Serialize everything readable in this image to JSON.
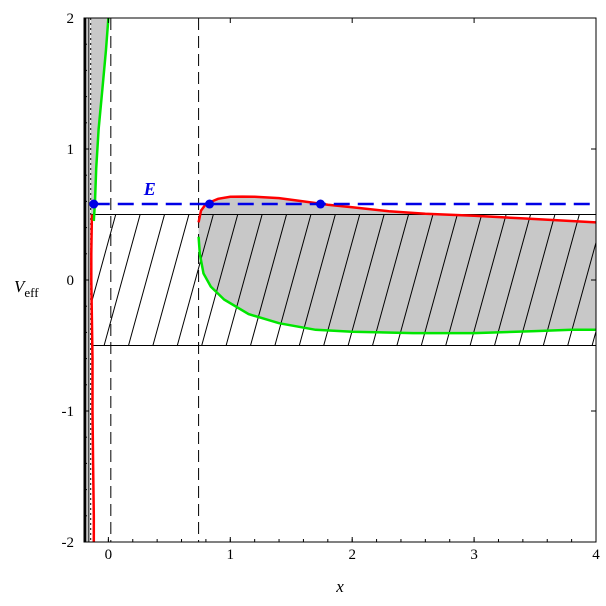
{
  "chart_data": {
    "type": "line",
    "xlabel": "x",
    "ylabel": {
      "main": "V",
      "sub": "eff"
    },
    "xlim": [
      -0.2,
      4
    ],
    "ylim": [
      -2,
      2
    ],
    "x_ticks": [
      {
        "value": 0,
        "label": "0"
      },
      {
        "value": 1,
        "label": "1"
      },
      {
        "value": 2,
        "label": "2"
      },
      {
        "value": 3,
        "label": "3"
      },
      {
        "value": 4,
        "label": "4"
      }
    ],
    "y_ticks": [
      {
        "value": -2,
        "label": "-2"
      },
      {
        "value": -1,
        "label": "-1"
      },
      {
        "value": 0,
        "label": "0"
      },
      {
        "value": 1,
        "label": "1"
      },
      {
        "value": 2,
        "label": "2"
      }
    ],
    "colors": {
      "red_curve": "#ff0000",
      "green_curve": "#00e600",
      "energy": "#0000e6",
      "shade": "#c8c8c8",
      "frame": "#000000"
    },
    "energy_line": {
      "label": "E",
      "y": 0.58,
      "points": [
        {
          "x": -0.12,
          "y": 0.58
        },
        {
          "x": 0.83,
          "y": 0.58
        },
        {
          "x": 1.74,
          "y": 0.58
        }
      ]
    },
    "band": {
      "x": [
        -0.14,
        4.0
      ],
      "y": [
        -0.5,
        0.5
      ]
    },
    "vertical_dashed_lines": [
      0.02,
      0.74
    ],
    "vertical_dotted_line": -0.145,
    "shaded_strip_left": [
      -0.19,
      -0.16
    ],
    "series": [
      {
        "color": "red",
        "values": [
          [
            0.74,
            0.44
          ],
          [
            0.76,
            0.53
          ],
          [
            0.8,
            0.58
          ],
          [
            0.85,
            0.6
          ],
          [
            0.9,
            0.62
          ],
          [
            1.0,
            0.635
          ],
          [
            1.1,
            0.637
          ],
          [
            1.2,
            0.635
          ],
          [
            1.4,
            0.625
          ],
          [
            1.6,
            0.6
          ],
          [
            1.8,
            0.575
          ],
          [
            2.0,
            0.555
          ],
          [
            2.3,
            0.525
          ],
          [
            2.6,
            0.505
          ],
          [
            3.0,
            0.49
          ],
          [
            3.4,
            0.47
          ],
          [
            3.7,
            0.455
          ],
          [
            4.0,
            0.44
          ]
        ]
      },
      {
        "color": "red",
        "values": [
          [
            -0.135,
            0.5
          ],
          [
            -0.14,
            0.2
          ],
          [
            -0.14,
            0.0
          ],
          [
            -0.135,
            -0.3
          ],
          [
            -0.13,
            -0.6
          ],
          [
            -0.13,
            -1.0
          ],
          [
            -0.125,
            -1.4
          ],
          [
            -0.12,
            -1.8
          ],
          [
            -0.12,
            -2.0
          ]
        ]
      },
      {
        "color": "green",
        "values": [
          [
            0.74,
            0.33
          ],
          [
            0.75,
            0.2
          ],
          [
            0.78,
            0.05
          ],
          [
            0.84,
            -0.05
          ],
          [
            0.95,
            -0.15
          ],
          [
            1.15,
            -0.26
          ],
          [
            1.4,
            -0.33
          ],
          [
            1.7,
            -0.38
          ],
          [
            2.0,
            -0.395
          ],
          [
            2.5,
            -0.405
          ],
          [
            3.0,
            -0.405
          ],
          [
            3.5,
            -0.39
          ],
          [
            3.8,
            -0.38
          ],
          [
            4.0,
            -0.38
          ]
        ]
      },
      {
        "color": "green",
        "values": [
          [
            0.0,
            2.0
          ],
          [
            -0.02,
            1.75
          ],
          [
            -0.05,
            1.45
          ],
          [
            -0.08,
            1.15
          ],
          [
            -0.1,
            0.85
          ],
          [
            -0.11,
            0.6
          ],
          [
            -0.12,
            0.45
          ]
        ]
      }
    ]
  }
}
